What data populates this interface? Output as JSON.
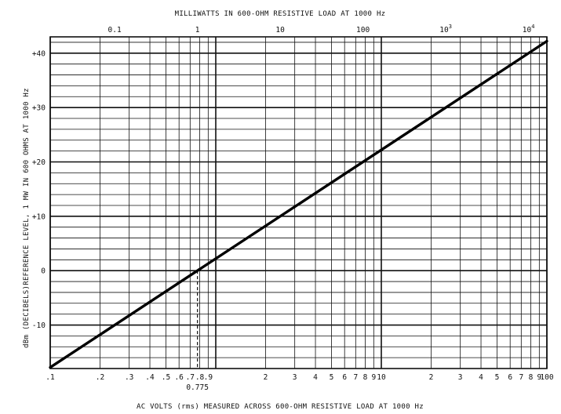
{
  "chart_data": {
    "type": "line",
    "title": "MILLIWATTS IN 600-OHM RESISTIVE LOAD AT 1000 Hz",
    "xlabel": "AC VOLTS (rms) MEASURED ACROSS 600-OHM RESISTIVE LOAD AT 1000 Hz",
    "ylabel": "dBm (DECIBELS)REFERENCE LEVEL, 1 MW IN 600 OHMS AT 1000 Hz",
    "x_scale": "log",
    "xlim": [
      0.1,
      100
    ],
    "ylim": [
      -18,
      43
    ],
    "x_tick_labels": [
      {
        "v": 0.1,
        "t": ".1"
      },
      {
        "v": 0.2,
        "t": ".2"
      },
      {
        "v": 0.3,
        "t": ".3"
      },
      {
        "v": 0.4,
        "t": ".4"
      },
      {
        "v": 0.5,
        "t": ".5"
      },
      {
        "v": 0.6,
        "t": ".6"
      },
      {
        "v": 0.7,
        "t": ".7"
      },
      {
        "v": 0.8,
        "t": ".8"
      },
      {
        "v": 0.9,
        "t": ".9"
      },
      {
        "v": 2,
        "t": "2"
      },
      {
        "v": 3,
        "t": "3"
      },
      {
        "v": 4,
        "t": "4"
      },
      {
        "v": 5,
        "t": "5"
      },
      {
        "v": 6,
        "t": "6"
      },
      {
        "v": 7,
        "t": "7"
      },
      {
        "v": 8,
        "t": "8"
      },
      {
        "v": 9,
        "t": "9"
      },
      {
        "v": 10,
        "t": "10"
      },
      {
        "v": 20,
        "t": "2"
      },
      {
        "v": 30,
        "t": "3"
      },
      {
        "v": 40,
        "t": "4"
      },
      {
        "v": 50,
        "t": "5"
      },
      {
        "v": 60,
        "t": "6"
      },
      {
        "v": 70,
        "t": "7"
      },
      {
        "v": 80,
        "t": "8"
      },
      {
        "v": 90,
        "t": "9"
      },
      {
        "v": 100,
        "t": "100"
      }
    ],
    "y_ticks": [
      {
        "v": 40,
        "t": "+40"
      },
      {
        "v": 30,
        "t": "+30"
      },
      {
        "v": 20,
        "t": "+20"
      },
      {
        "v": 10,
        "t": "+10"
      },
      {
        "v": 0,
        "t": "0"
      },
      {
        "v": -10,
        "t": "-10"
      }
    ],
    "top_axis": {
      "label": "MILLIWATTS IN 600-OHM RESISTIVE LOAD AT 1000 Hz",
      "ticks": [
        {
          "mw": 0.1,
          "t": "0.1",
          "exp": ""
        },
        {
          "mw": 1,
          "t": "1",
          "exp": ""
        },
        {
          "mw": 10,
          "t": "10",
          "exp": ""
        },
        {
          "mw": 100,
          "t": "100",
          "exp": ""
        },
        {
          "mw": 1000,
          "t": "10",
          "exp": "3"
        },
        {
          "mw": 10000,
          "t": "10",
          "exp": "4"
        }
      ]
    },
    "reference": {
      "x": 0.775,
      "y": 0,
      "label": "0.775"
    },
    "series": [
      {
        "x": [
          0.1,
          0.775,
          100
        ],
        "y": [
          -17.8,
          0,
          42.2
        ]
      }
    ],
    "grid": true
  }
}
